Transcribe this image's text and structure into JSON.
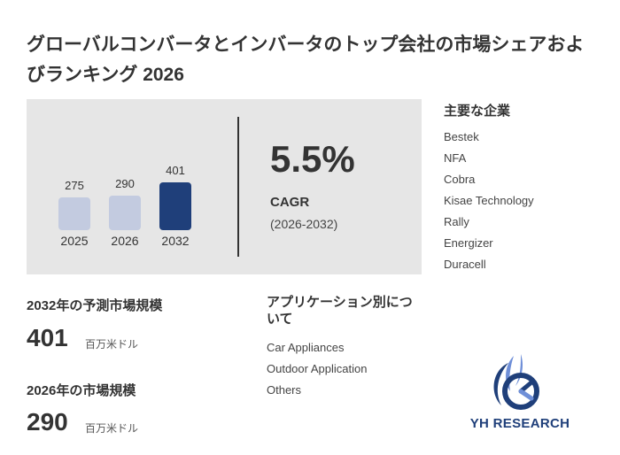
{
  "report": {
    "title": "グローバルコンバータとインバータのトップ会社の市場シェアおよびランキング 2026"
  },
  "chart_data": {
    "type": "bar",
    "categories": [
      "2025",
      "2026",
      "2032"
    ],
    "values": [
      275,
      290,
      401
    ],
    "value_labels": [
      "275",
      "290",
      "401"
    ],
    "ylim": [
      0,
      401
    ],
    "colors": [
      "#c3cbe0",
      "#c3cbe0",
      "#1f3f7a"
    ]
  },
  "cagr": {
    "value": "5.5%",
    "label": "CAGR",
    "period": "(2026-2032)"
  },
  "key_players": {
    "title": "主要な企業",
    "items": [
      "Bestek",
      "NFA",
      "Cobra",
      "Kisae Technology",
      "Rally",
      "Energizer",
      "Duracell"
    ]
  },
  "forecast": {
    "title": "2032年の予測市場規模",
    "value": "401",
    "unit": "百万米ドル"
  },
  "current": {
    "title": "2026年の市場規模",
    "value": "290",
    "unit": "百万米ドル"
  },
  "applications": {
    "title": "アプリケーション別について",
    "items": [
      "Car Appliances",
      "Outdoor Application",
      "Others"
    ]
  },
  "brand": {
    "name": "YH RESEARCH",
    "primary_color": "#1f3f7a",
    "accent_color": "#6f8fd8"
  }
}
